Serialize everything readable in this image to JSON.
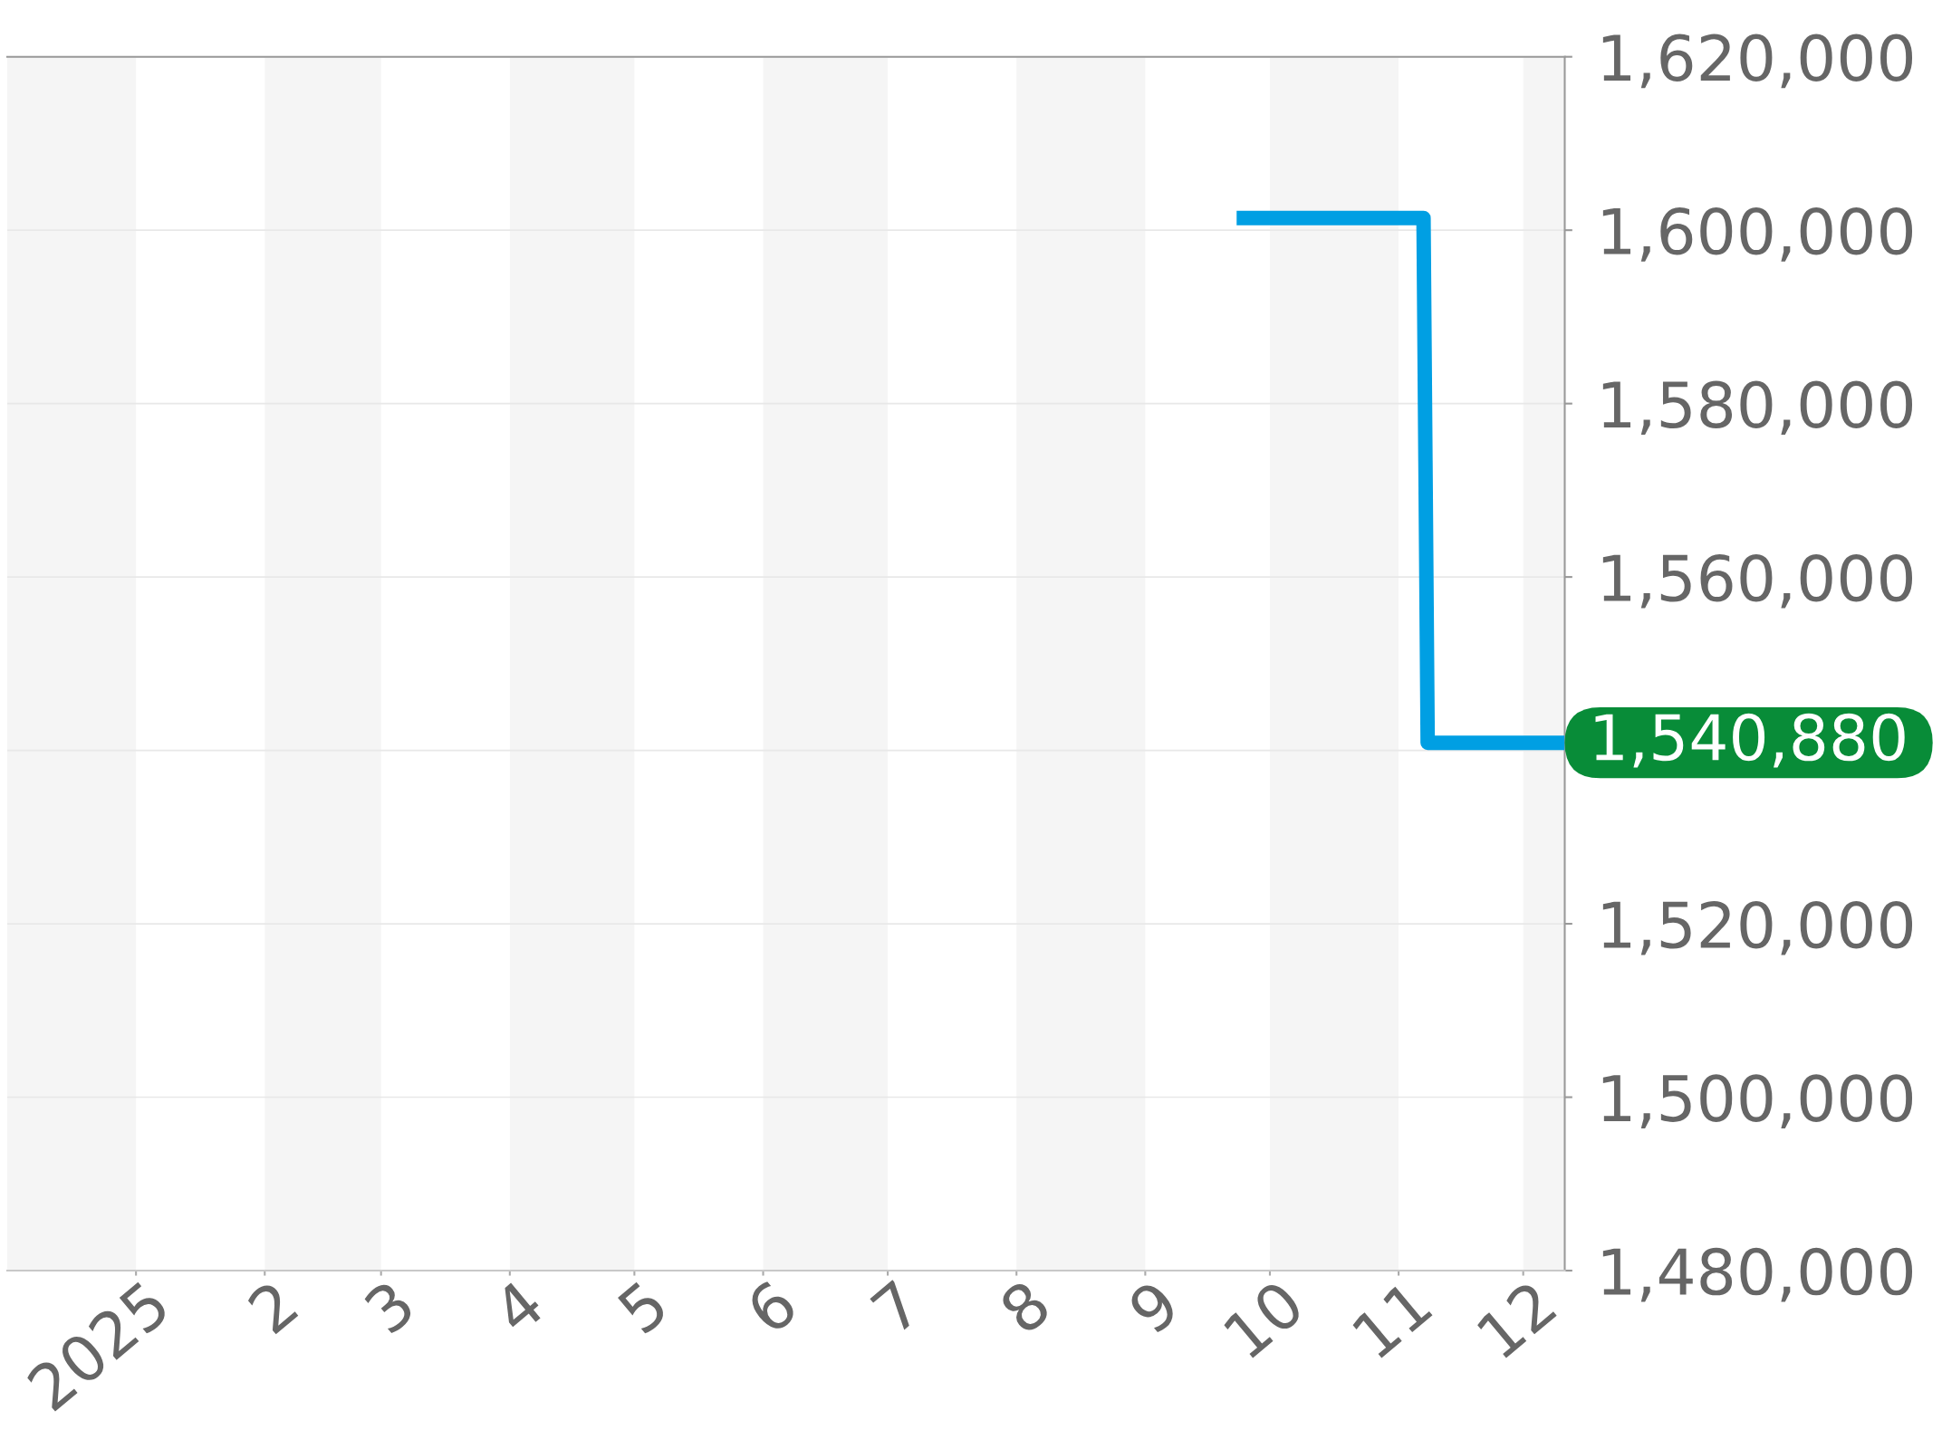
{
  "chart_data": {
    "type": "line",
    "x": [
      "2025-09-23",
      "2025-11-07",
      "2025-11-08",
      "2025-12-11"
    ],
    "series": [
      {
        "color": "#009fe3",
        "values": [
          1601400,
          1601400,
          1540880,
          1540880
        ]
      }
    ],
    "xlim": [
      "2024-12-01",
      "2025-12-11"
    ],
    "xticks": [
      {
        "value": "2025-01-01",
        "label": "2025"
      },
      {
        "value": "2025-02-01",
        "label": "2"
      },
      {
        "value": "2025-03-01",
        "label": "3"
      },
      {
        "value": "2025-04-01",
        "label": "4"
      },
      {
        "value": "2025-05-01",
        "label": "5"
      },
      {
        "value": "2025-06-01",
        "label": "6"
      },
      {
        "value": "2025-07-01",
        "label": "7"
      },
      {
        "value": "2025-08-01",
        "label": "8"
      },
      {
        "value": "2025-09-01",
        "label": "9"
      },
      {
        "value": "2025-10-01",
        "label": "10"
      },
      {
        "value": "2025-11-01",
        "label": "11"
      },
      {
        "value": "2025-12-01",
        "label": "12"
      }
    ],
    "ylim": [
      1480000,
      1620000
    ],
    "yticks": [
      {
        "value": 1480000,
        "label": "1,480,000"
      },
      {
        "value": 1500000,
        "label": "1,500,000"
      },
      {
        "value": 1520000,
        "label": "1,520,000"
      },
      {
        "value": 1540000,
        "label": null
      },
      {
        "value": 1560000,
        "label": "1,560,000"
      },
      {
        "value": 1580000,
        "label": "1,580,000"
      },
      {
        "value": 1600000,
        "label": "1,600,000"
      },
      {
        "value": 1620000,
        "label": "1,620,000"
      }
    ],
    "grid": "y",
    "bands": [
      {
        "axis": "x",
        "from": "2024-12-01",
        "to": "2025-01-01",
        "color": "#f5f5f5"
      },
      {
        "axis": "x",
        "from": "2025-02-01",
        "to": "2025-03-01",
        "color": "#f5f5f5"
      },
      {
        "axis": "x",
        "from": "2025-04-01",
        "to": "2025-05-01",
        "color": "#f5f5f5"
      },
      {
        "axis": "x",
        "from": "2025-06-01",
        "to": "2025-07-01",
        "color": "#f5f5f5"
      },
      {
        "axis": "x",
        "from": "2025-08-01",
        "to": "2025-09-01",
        "color": "#f5f5f5"
      },
      {
        "axis": "x",
        "from": "2025-10-01",
        "to": "2025-11-01",
        "color": "#f5f5f5"
      },
      {
        "axis": "x",
        "from": "2025-12-01",
        "to": "2025-12-11",
        "color": "#f5f5f5"
      }
    ],
    "annotations": [
      {
        "text": "1,540,880",
        "x": "2025-12-11",
        "y": 1540880
      }
    ]
  }
}
